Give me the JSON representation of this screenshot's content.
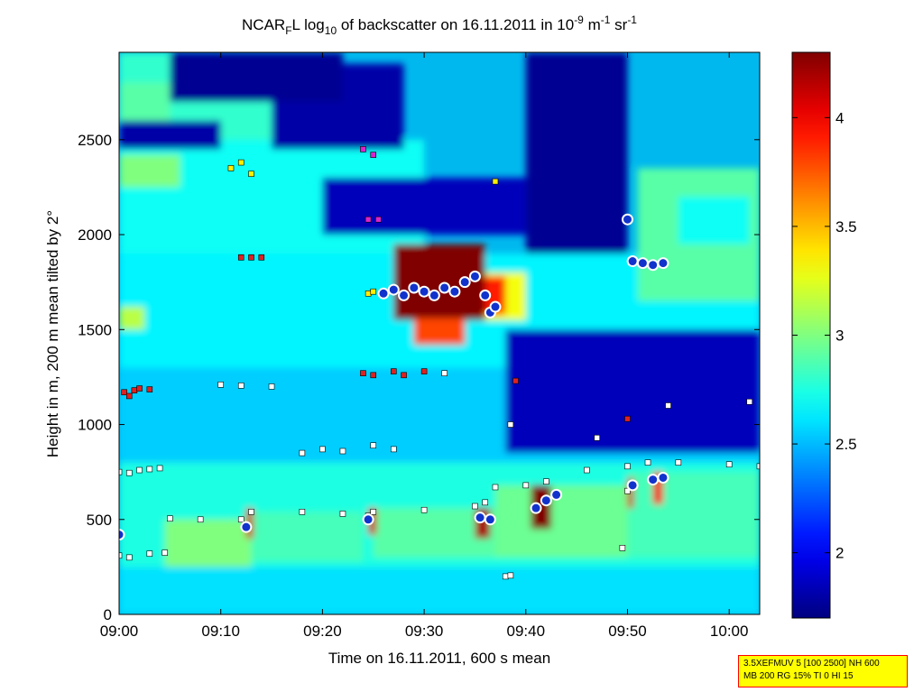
{
  "chart_data": {
    "type": "heatmap",
    "title": {
      "parts": [
        "NCAR",
        "F",
        "L log",
        "10",
        " of backscatter on 16.11.2011 in 10",
        "-9",
        " m",
        "-1",
        " sr",
        "-1"
      ]
    },
    "xlabel": "Time on 16.11.2011, 600 s mean",
    "ylabel": "Height in m, 200 m mean tilted by 2°",
    "xlim": [
      "09:00",
      "10:03"
    ],
    "ylim": [
      0,
      2960
    ],
    "x_ticks": [
      "09:00",
      "09:10",
      "09:20",
      "09:30",
      "09:40",
      "09:50",
      "10:00"
    ],
    "y_ticks": [
      "0",
      "500",
      "1000",
      "1500",
      "2000",
      "2500"
    ],
    "colorbar": {
      "clim": [
        1.7,
        4.3
      ],
      "ticks": [
        "2",
        "2.5",
        "3",
        "3.5",
        "4"
      ],
      "colormap": "jet"
    },
    "field_regions": [
      {
        "t0": 0,
        "t1": 63,
        "h0": 0,
        "h1": 250,
        "value": 2.6
      },
      {
        "t0": 0,
        "t1": 63,
        "h0": 250,
        "h1": 800,
        "value": 2.75
      },
      {
        "t0": 0,
        "t1": 63,
        "h0": 800,
        "h1": 1300,
        "value": 2.55
      },
      {
        "t0": 0,
        "t1": 63,
        "h0": 1300,
        "h1": 1900,
        "value": 2.65
      },
      {
        "t0": 0,
        "t1": 30,
        "h0": 1900,
        "h1": 2500,
        "value": 2.7
      },
      {
        "t0": 0,
        "t1": 15,
        "h0": 2500,
        "h1": 2960,
        "value": 2.8
      },
      {
        "t0": 0,
        "t1": 2.5,
        "h0": 1500,
        "h1": 1620,
        "value": 3.15
      },
      {
        "t0": 0,
        "t1": 6,
        "h0": 2250,
        "h1": 2420,
        "value": 3.0
      },
      {
        "t0": 0,
        "t1": 5,
        "h0": 2600,
        "h1": 2800,
        "value": 2.9
      },
      {
        "t0": 4.5,
        "t1": 13,
        "h0": 250,
        "h1": 500,
        "value": 3.0
      },
      {
        "t0": 13,
        "t1": 24,
        "h0": 280,
        "h1": 540,
        "value": 2.85
      },
      {
        "t0": 25,
        "t1": 37,
        "h0": 300,
        "h1": 560,
        "value": 2.9
      },
      {
        "t0": 37,
        "t1": 50,
        "h0": 300,
        "h1": 680,
        "value": 2.95
      },
      {
        "t0": 50,
        "t1": 63,
        "h0": 300,
        "h1": 750,
        "value": 2.85
      },
      {
        "t0": 40,
        "t1": 50,
        "h0": 1900,
        "h1": 2960,
        "value": 1.75
      },
      {
        "t0": 38,
        "t1": 63,
        "h0": 850,
        "h1": 1500,
        "value": 1.85
      },
      {
        "t0": 15,
        "t1": 28,
        "h0": 2450,
        "h1": 2900,
        "value": 1.8
      },
      {
        "t0": 5,
        "t1": 22,
        "h0": 2700,
        "h1": 2960,
        "value": 1.75
      },
      {
        "t0": 20,
        "t1": 40,
        "h0": 2000,
        "h1": 2300,
        "value": 1.85
      },
      {
        "t0": 0,
        "t1": 10,
        "h0": 2450,
        "h1": 2600,
        "value": 1.8
      },
      {
        "t0": 51,
        "t1": 63,
        "h0": 1650,
        "h1": 2350,
        "value": 2.9
      },
      {
        "t0": 55,
        "t1": 62,
        "h0": 1950,
        "h1": 2200,
        "value": 2.7
      },
      {
        "t0": 34,
        "t1": 40,
        "h0": 1550,
        "h1": 1800,
        "value": 3.3
      },
      {
        "t0": 35.5,
        "t1": 38,
        "h0": 1580,
        "h1": 1780,
        "value": 3.9
      },
      {
        "t0": 27,
        "t1": 36,
        "h0": 1550,
        "h1": 1950,
        "value": 4.3
      },
      {
        "t0": 29,
        "t1": 34,
        "h0": 1420,
        "h1": 1560,
        "value": 3.8
      },
      {
        "t0": 12.5,
        "t1": 13.2,
        "h0": 400,
        "h1": 560,
        "value": 4.1
      },
      {
        "t0": 24.5,
        "t1": 25.3,
        "h0": 420,
        "h1": 560,
        "value": 4.1
      },
      {
        "t0": 35,
        "t1": 36.5,
        "h0": 400,
        "h1": 560,
        "value": 4.2
      },
      {
        "t0": 40.5,
        "t1": 42.5,
        "h0": 450,
        "h1": 680,
        "value": 4.3
      },
      {
        "t0": 50,
        "t1": 50.6,
        "h0": 560,
        "h1": 720,
        "value": 4.1
      },
      {
        "t0": 52.5,
        "t1": 53.5,
        "h0": 580,
        "h1": 750,
        "value": 4.0
      }
    ],
    "series": [
      {
        "marker": "square",
        "color": "#ffffff",
        "points": [
          [
            0,
            750
          ],
          [
            1,
            745
          ],
          [
            2,
            760
          ],
          [
            3,
            765
          ],
          [
            4,
            770
          ],
          [
            5,
            505
          ],
          [
            8,
            500
          ],
          [
            12,
            500
          ],
          [
            12.5,
            470
          ],
          [
            13,
            540
          ],
          [
            18,
            540
          ],
          [
            22,
            530
          ],
          [
            24.5,
            520
          ],
          [
            25,
            540
          ],
          [
            30,
            550
          ],
          [
            35,
            570
          ],
          [
            36,
            590
          ],
          [
            37,
            670
          ],
          [
            40,
            680
          ],
          [
            42,
            700
          ],
          [
            46,
            760
          ],
          [
            50,
            780
          ],
          [
            52,
            800
          ],
          [
            55,
            800
          ],
          [
            60,
            790
          ],
          [
            63,
            780
          ]
        ]
      },
      {
        "marker": "square",
        "color": "#ffffff",
        "points": [
          [
            10,
            1210
          ],
          [
            12,
            1205
          ],
          [
            15,
            1200
          ],
          [
            18,
            850
          ],
          [
            20,
            870
          ],
          [
            22,
            860
          ],
          [
            25,
            890
          ],
          [
            27,
            870
          ],
          [
            32,
            1270
          ],
          [
            38.5,
            1000
          ],
          [
            47,
            930
          ],
          [
            54,
            1100
          ],
          [
            62,
            1120
          ]
        ]
      },
      {
        "marker": "square",
        "color": "#ffffff",
        "points": [
          [
            0,
            310
          ],
          [
            1,
            300
          ],
          [
            3,
            320
          ],
          [
            4.5,
            325
          ],
          [
            38,
            200
          ],
          [
            38.5,
            205
          ],
          [
            49.5,
            350
          ],
          [
            50,
            650
          ]
        ]
      },
      {
        "marker": "square",
        "color": "#dd2222",
        "points": [
          [
            0.5,
            1170
          ],
          [
            1,
            1150
          ],
          [
            1.5,
            1180
          ],
          [
            2,
            1190
          ],
          [
            3,
            1185
          ],
          [
            12,
            1880
          ],
          [
            13,
            1880
          ],
          [
            14,
            1880
          ],
          [
            24,
            1270
          ],
          [
            25,
            1260
          ],
          [
            27,
            1280
          ],
          [
            28,
            1260
          ],
          [
            30,
            1280
          ],
          [
            39,
            1230
          ],
          [
            50,
            1030
          ]
        ]
      },
      {
        "marker": "square",
        "color": "#ffee00",
        "points": [
          [
            11,
            2350
          ],
          [
            12,
            2380
          ],
          [
            13,
            2320
          ],
          [
            24.5,
            1690
          ],
          [
            25,
            1700
          ],
          [
            27,
            1720
          ],
          [
            37,
            2280
          ]
        ]
      },
      {
        "marker": "square",
        "color": "#dd22cc",
        "points": [
          [
            24,
            2450
          ],
          [
            25,
            2420
          ],
          [
            24.5,
            2080
          ],
          [
            25.5,
            2080
          ]
        ]
      },
      {
        "marker": "circle",
        "color": "#1133cc",
        "points": [
          [
            0,
            420
          ],
          [
            12.5,
            460
          ],
          [
            24.5,
            500
          ],
          [
            26,
            1690
          ],
          [
            27,
            1710
          ],
          [
            28,
            1680
          ],
          [
            29,
            1720
          ],
          [
            30,
            1700
          ],
          [
            31,
            1680
          ],
          [
            32,
            1720
          ],
          [
            33,
            1700
          ],
          [
            34,
            1750
          ],
          [
            35,
            1780
          ],
          [
            36,
            1680
          ],
          [
            36.5,
            1590
          ],
          [
            37,
            1620
          ],
          [
            35.5,
            510
          ],
          [
            36.5,
            500
          ],
          [
            41,
            560
          ],
          [
            42,
            600
          ],
          [
            43,
            630
          ],
          [
            50,
            2080
          ],
          [
            50.5,
            1860
          ],
          [
            51.5,
            1850
          ],
          [
            52.5,
            1840
          ],
          [
            53.5,
            1850
          ],
          [
            50.5,
            680
          ],
          [
            52.5,
            710
          ],
          [
            53.5,
            720
          ]
        ]
      }
    ]
  },
  "info_box": {
    "line1": "3.5XEFMUV 5 [100 2500] NH 600",
    "line2": "MB 200 RG 15% TI 0 HI 15"
  }
}
